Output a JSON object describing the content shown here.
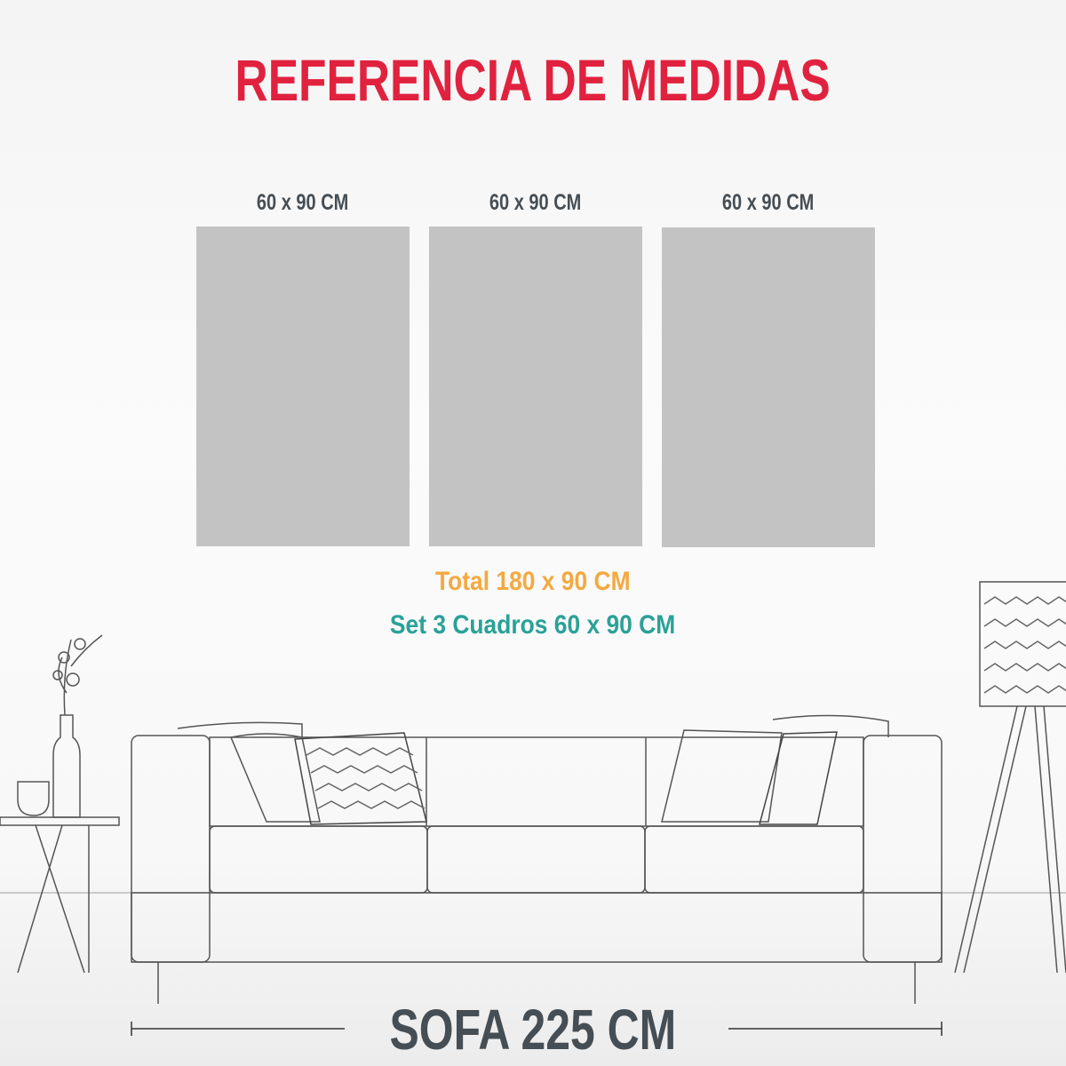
{
  "title": "REFERENCIA DE MEDIDAS",
  "panels": [
    {
      "label": "60 x 90 CM"
    },
    {
      "label": "60 x 90 CM"
    },
    {
      "label": "60 x 90 CM"
    }
  ],
  "total": "Total 180 x 90 CM",
  "set": "Set 3 Cuadros 60 x 90 CM",
  "sofa_label": "SOFA 225 CM",
  "colors": {
    "title": "#e0223f",
    "total": "#f4a940",
    "set": "#2aa198",
    "label": "#464e55",
    "panel": "#c3c3c3"
  }
}
